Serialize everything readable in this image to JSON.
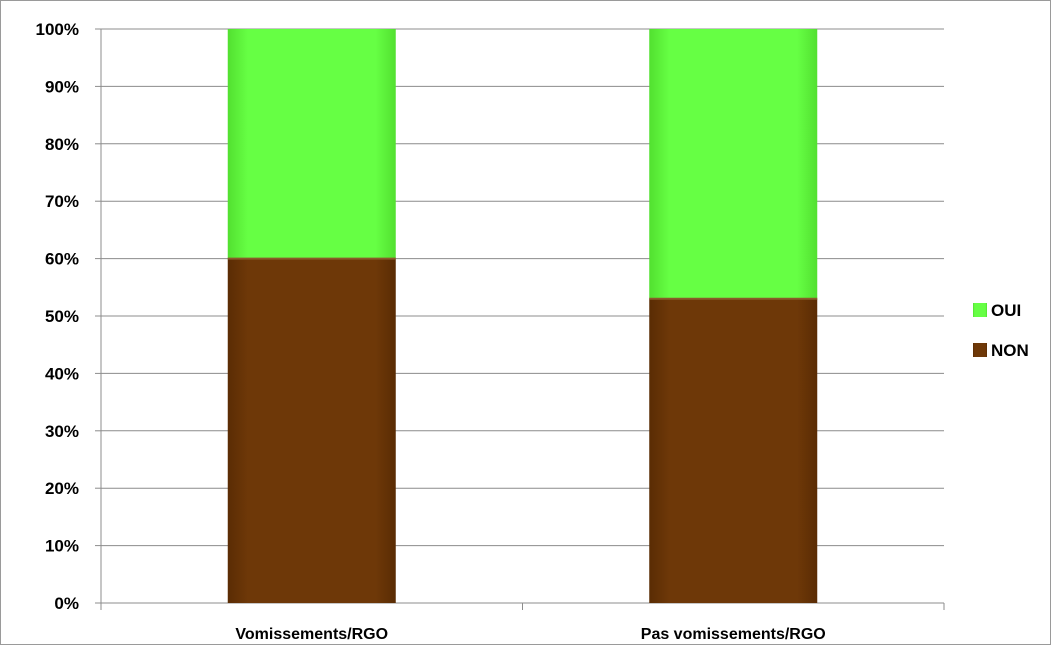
{
  "chart_data": {
    "type": "bar",
    "stacked": true,
    "percent_stacked": true,
    "categories": [
      "Vomissements/RGO",
      "Pas vomissements/RGO"
    ],
    "series": [
      {
        "name": "NON",
        "values": [
          60,
          53
        ],
        "color": "#6b3608"
      },
      {
        "name": "OUI",
        "values": [
          40,
          47
        ],
        "color": "#66ff44"
      }
    ],
    "y_ticks": [
      "0%",
      "10%",
      "20%",
      "30%",
      "40%",
      "50%",
      "60%",
      "70%",
      "80%",
      "90%",
      "100%"
    ],
    "ylim": [
      0,
      100
    ],
    "title": "",
    "xlabel": "",
    "ylabel": "",
    "grid": true,
    "legend": {
      "position": "right",
      "entries": [
        "OUI",
        "NON"
      ]
    }
  }
}
